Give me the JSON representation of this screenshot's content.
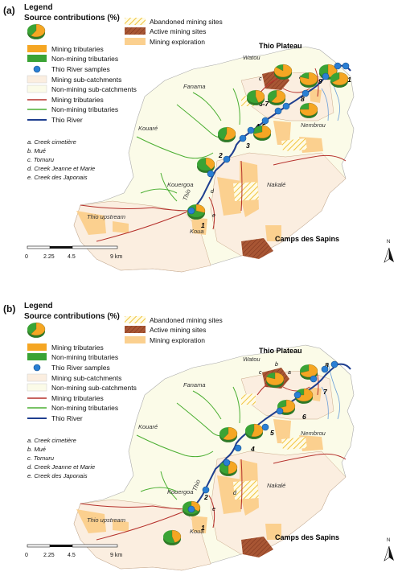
{
  "panels": [
    {
      "label": "(a)",
      "legend": {
        "title": "Legend",
        "subtitle": "Source contributions (%)",
        "items": [
          "Mining tributaries",
          "Non-mining tributaries",
          "Thio River samples",
          "Mining sub-catchments",
          "Non-mining sub-catchments",
          "Mining tributaries",
          "Non-mining tributaries",
          "Thio River"
        ],
        "site_types": [
          "Abandoned mining sites",
          "Active mining sites",
          "Mining exploration"
        ],
        "creeks": [
          "a. Creek cimetière",
          "b. Mué",
          "c. Tomuru",
          "d. Creek Jeanne et Marie",
          "e. Creek des Japonais"
        ]
      },
      "places": {
        "plateau": "Thio Plateau",
        "camps": "Camps des Sapins",
        "watou": "Watou",
        "fanama": "Fanama",
        "kouare": "Kouaré",
        "nembrou": "Nembrou",
        "nakale": "Nakalé",
        "kouergoa": "Kouergoa",
        "upstream": "Thio upstream",
        "koua": "Koua",
        "thio": "Thio"
      },
      "sites": [
        "1",
        "2",
        "3",
        "4-5",
        "6-7",
        "8",
        "9",
        "10",
        "11"
      ],
      "creek_letters": [
        "a",
        "b",
        "c",
        "d",
        "e"
      ],
      "pies": [
        {
          "site": "1",
          "mining": 0.3
        },
        {
          "site": "2",
          "mining": 0.4
        },
        {
          "site": "3",
          "mining": 0.55
        },
        {
          "site": "4-5",
          "mining": 0.7
        },
        {
          "site": "6-7",
          "mining": 0.45
        },
        {
          "site": "6-7b",
          "mining": 0.6
        },
        {
          "site": "8",
          "mining": 0.75
        },
        {
          "site": "9",
          "mining": 0.8
        },
        {
          "site": "10",
          "mining": 0.5
        },
        {
          "site": "11",
          "mining": 0.65
        },
        {
          "site": "b",
          "mining": 0.85
        }
      ],
      "scale": {
        "ticks": [
          "0",
          "2.25",
          "4.5",
          "9 km"
        ]
      },
      "north": "N"
    },
    {
      "label": "(b)",
      "legend": {
        "title": "Legend",
        "subtitle": "Source contributions (%)",
        "items": [
          "Mining tributaries",
          "Non-mining tributaries",
          "Thio River samples",
          "Mining sub-catchments",
          "Non-mining sub-catchments",
          "Mining tributaries",
          "Non-mining tributaries",
          "Thio River"
        ],
        "site_types": [
          "Abandoned mining sites",
          "Active mining sites",
          "Mining exploration"
        ],
        "creeks": [
          "a. Creek cimetière",
          "b. Mué",
          "c. Tomuru",
          "d. Creek Jeanne et Marie",
          "e. Creek des Japonais"
        ]
      },
      "places": {
        "plateau": "Thio Plateau",
        "camps": "Camps des Sapins",
        "watou": "Watou",
        "fanama": "Fanama",
        "kouare": "Kouaré",
        "nembrou": "Nembrou",
        "nakale": "Nakalé",
        "kouergoa": "Kouergoa",
        "upstream": "Thio upstream",
        "koua": "Koua",
        "thio": "Thio"
      },
      "sites": [
        "1",
        "2",
        "3",
        "4",
        "5",
        "6",
        "7",
        "8"
      ],
      "creek_letters": [
        "a",
        "b",
        "c",
        "d",
        "e"
      ],
      "pies": [
        {
          "site": "1",
          "mining": 0.45
        },
        {
          "site": "2",
          "mining": 0.35
        },
        {
          "site": "3",
          "mining": 0.5
        },
        {
          "site": "4",
          "mining": 0.6
        },
        {
          "site": "5",
          "mining": 0.55
        },
        {
          "site": "6",
          "mining": 0.7
        },
        {
          "site": "7",
          "mining": 0.75
        },
        {
          "site": "8",
          "mining": 0.7
        },
        {
          "site": "b",
          "mining": 0.8
        }
      ],
      "scale": {
        "ticks": [
          "0",
          "2.25",
          "4.5",
          "9 km"
        ]
      },
      "north": "N"
    }
  ],
  "colors": {
    "mining": "#f5a623",
    "nonmining": "#3aa335",
    "sample": "#2a7fd4",
    "river": "#1f3f8f",
    "mining_catch": "#fbeee0",
    "nonmining_catch": "#fbfbe8",
    "mining_trib": "#b5302b",
    "nonmining_trib": "#4caf33",
    "exploration": "#fbd08f",
    "active": "#9c4a2c",
    "abandoned": "#f2cc4a"
  }
}
